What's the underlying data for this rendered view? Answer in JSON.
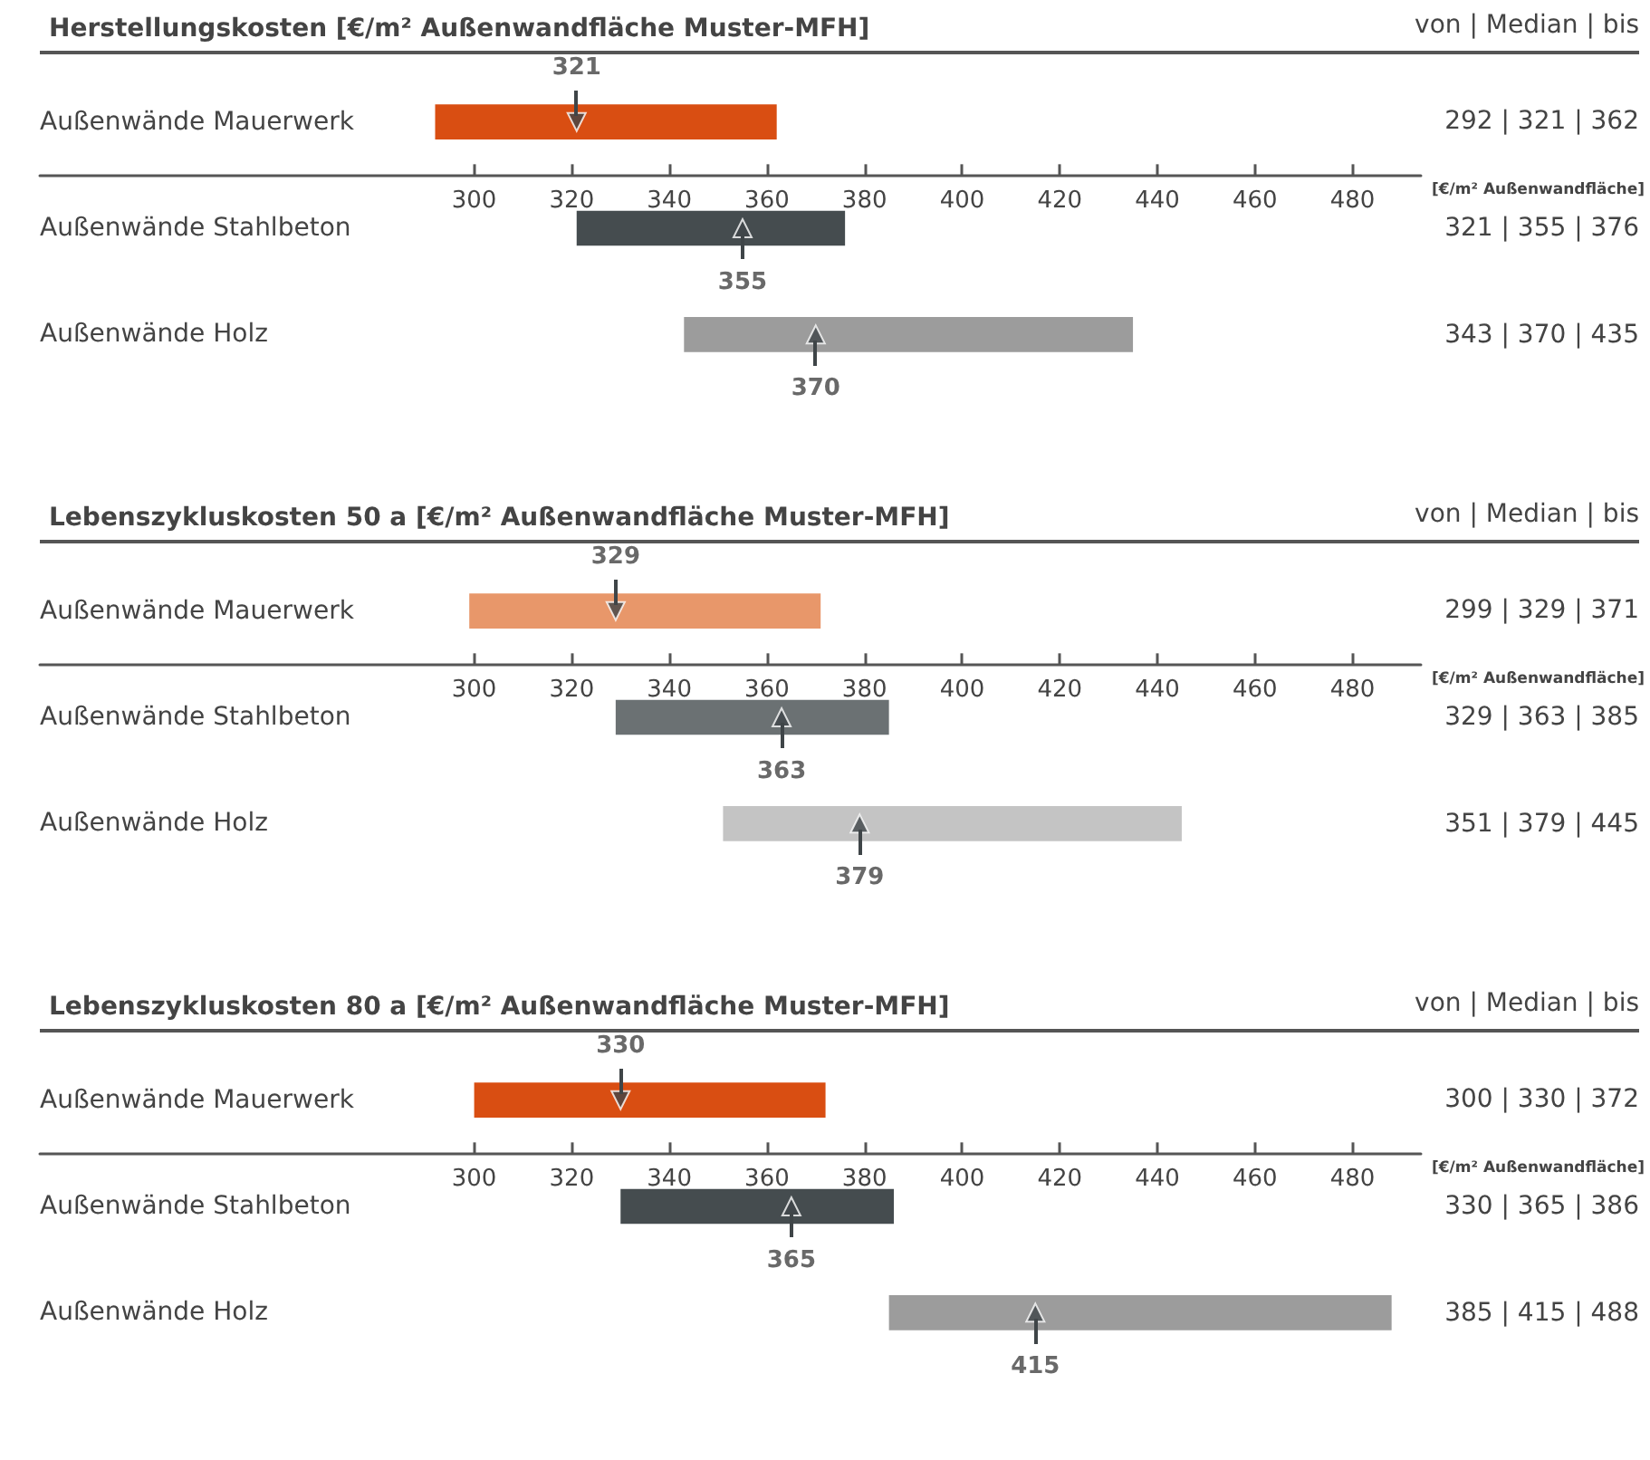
{
  "chart_data": [
    {
      "type": "bar",
      "orientation": "horizontal",
      "title": "Herstellungskosten",
      "subtitle": "[€/m² Außenwandfläche Muster-MFH]",
      "xlabel": "[€/m² Außenwandfläche]",
      "categories": [
        "Außenwände Mauerwerk",
        "Außenwände Stahlbeton",
        "Außenwände Holz"
      ],
      "xlim": [
        211,
        494
      ],
      "xticks": [
        300,
        320,
        340,
        360,
        380,
        400,
        420,
        440,
        460,
        480
      ],
      "annotations": [
        "von | Median | bis",
        "292 | 321 | 362",
        "321 | 355 | 376",
        "343 | 370 | 435"
      ],
      "series": [
        {
          "colors": [
            "#d94e12",
            "#454c4f",
            "#9c9c9c"
          ],
          "base": [
            292,
            321,
            343
          ],
          "values": [
            70,
            55,
            92
          ]
        },
        {
          "type": "scatter",
          "marker": "triangle",
          "color": "#3f4548",
          "values": [
            321,
            355,
            370
          ],
          "value_labels": [
            "321",
            "355",
            "370"
          ]
        }
      ]
    },
    {
      "type": "bar",
      "orientation": "horizontal",
      "title": "Lebenszykluskosten 50 a",
      "subtitle": "[€/m² Außenwandfläche Muster-MFH]",
      "xlabel": "[€/m² Außenwandfläche]",
      "categories": [
        "Außenwände Mauerwerk",
        "Außenwände Stahlbeton",
        "Außenwände Holz"
      ],
      "xlim": [
        211,
        494
      ],
      "xticks": [
        300,
        320,
        340,
        360,
        380,
        400,
        420,
        440,
        460,
        480
      ],
      "annotations": [
        "von | Median | bis",
        "299 | 329 | 371",
        "329 | 363 | 385",
        "351 | 379 | 445"
      ],
      "series": [
        {
          "colors": [
            "#e8976a",
            "#6b7173",
            "#c4c4c4"
          ],
          "base": [
            299,
            329,
            351
          ],
          "values": [
            72,
            56,
            94
          ]
        },
        {
          "type": "scatter",
          "marker": "triangle",
          "color": "#3f4548",
          "values": [
            329,
            363,
            379
          ],
          "value_labels": [
            "329",
            "363",
            "379"
          ]
        }
      ]
    },
    {
      "type": "bar",
      "orientation": "horizontal",
      "title": "Lebenszykluskosten 80 a",
      "subtitle": "[€/m² Außenwandfläche Muster-MFH]",
      "xlabel": "[€/m² Außenwandfläche]",
      "categories": [
        "Außenwände Mauerwerk",
        "Außenwände Stahlbeton",
        "Außenwände Holz"
      ],
      "xlim": [
        211,
        494
      ],
      "xticks": [
        300,
        320,
        340,
        360,
        380,
        400,
        420,
        440,
        460,
        480
      ],
      "annotations": [
        "von | Median | bis",
        "300 | 330 | 372",
        "330 | 365 | 386",
        "385 | 415 | 488"
      ],
      "series": [
        {
          "colors": [
            "#d94e12",
            "#454c4f",
            "#9c9c9c"
          ],
          "base": [
            300,
            330,
            385
          ],
          "values": [
            72,
            56,
            103
          ]
        },
        {
          "type": "scatter",
          "marker": "triangle",
          "color": "#3f4548",
          "values": [
            330,
            365,
            415
          ],
          "value_labels": [
            "330",
            "365",
            "415"
          ]
        }
      ]
    }
  ]
}
